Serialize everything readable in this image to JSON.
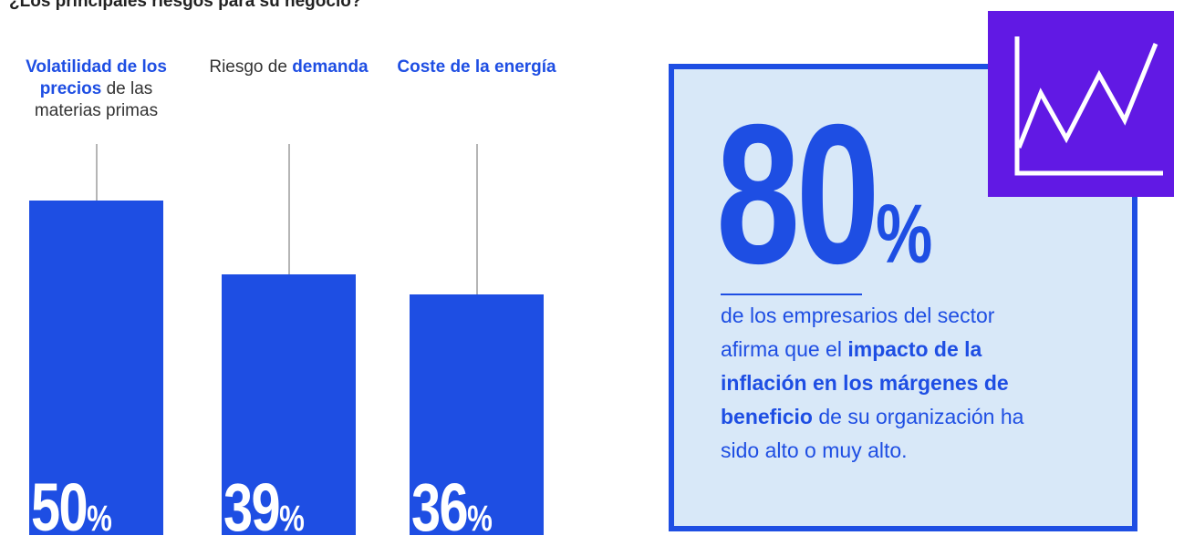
{
  "chart_data": {
    "type": "bar",
    "title": "¿Los principales riesgos para su negocio?",
    "categories": [
      [
        {
          "text": "Volatilidad de los precios",
          "strong": true
        },
        {
          "text": " de las materias primas"
        }
      ],
      [
        {
          "text": "Riesgo de "
        },
        {
          "text": "demanda",
          "strong": true
        }
      ],
      [
        {
          "text": "Coste de la energía",
          "strong": true
        }
      ]
    ],
    "values": [
      50,
      39,
      36
    ],
    "value_unit": "%",
    "color": "#1e4ee3",
    "callout": {
      "value": 80,
      "unit": "%",
      "text": [
        {
          "text": "de los empresarios del sector afirma que el "
        },
        {
          "text": "impacto de la inflación en los márgenes de beneficio",
          "strong": true
        },
        {
          "text": " de su organización ha sido alto o muy alto."
        }
      ],
      "color": "#1e4ee3",
      "background": "#d8e8f8",
      "icon_color": "#6119e4"
    }
  }
}
